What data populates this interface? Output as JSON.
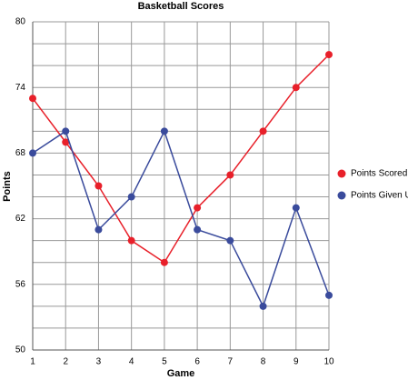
{
  "chart_data": {
    "type": "line",
    "title": "Basketball Scores",
    "x_label": "Game",
    "y_label": "Points",
    "x": [
      1,
      2,
      3,
      4,
      5,
      6,
      7,
      8,
      9,
      10
    ],
    "series": [
      {
        "name": "Points Scored",
        "color": "#e8202a",
        "values": [
          73,
          69,
          65,
          60,
          58,
          63,
          66,
          70,
          74,
          77
        ]
      },
      {
        "name": "Points Given Up",
        "color": "#3a4b9c",
        "values": [
          68,
          70,
          61,
          64,
          70,
          61,
          60,
          54,
          63,
          55
        ]
      }
    ],
    "xlim": [
      1,
      10
    ],
    "xticks": [
      1,
      2,
      3,
      4,
      5,
      6,
      7,
      8,
      9,
      10
    ],
    "ylim": [
      50,
      80
    ],
    "yticks": [
      50,
      56,
      62,
      68,
      74,
      80
    ],
    "minor_yticks": [
      52,
      54,
      58,
      60,
      64,
      66,
      70,
      72,
      76,
      78
    ],
    "grid": true,
    "legend": "right"
  }
}
